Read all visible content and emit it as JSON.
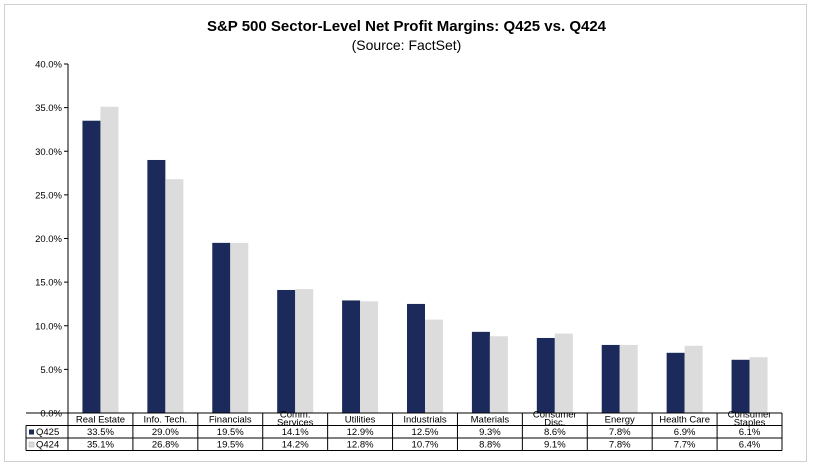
{
  "chart_data": {
    "type": "bar",
    "title": "S&P 500 Sector-Level Net Profit Margins: Q425 vs. Q424",
    "subtitle": "(Source: FactSet)",
    "ylim": [
      0,
      40
    ],
    "yticks": [
      "0.0%",
      "5.0%",
      "10.0%",
      "15.0%",
      "20.0%",
      "25.0%",
      "30.0%",
      "35.0%",
      "40.0%"
    ],
    "grid": false,
    "legend": "data-table-left",
    "categories": [
      [
        "Real Estate"
      ],
      [
        "Info. Tech."
      ],
      [
        "Financials"
      ],
      [
        "Comm.",
        "Services"
      ],
      [
        "Utilities"
      ],
      [
        "Industrials"
      ],
      [
        "Materials"
      ],
      [
        "Consumer",
        "Disc."
      ],
      [
        "Energy"
      ],
      [
        "Health Care"
      ],
      [
        "Consumer",
        "Staples"
      ]
    ],
    "series": [
      {
        "name": "Q425",
        "color": "#1b2a5a",
        "values": [
          33.5,
          29.0,
          19.5,
          14.1,
          12.9,
          12.5,
          9.3,
          8.6,
          7.8,
          6.9,
          6.1
        ],
        "labels": [
          "33.5%",
          "29.0%",
          "19.5%",
          "14.1%",
          "12.9%",
          "12.5%",
          "9.3%",
          "8.6%",
          "7.8%",
          "6.9%",
          "6.1%"
        ]
      },
      {
        "name": "Q424",
        "color": "#dcdcdc",
        "values": [
          35.1,
          26.8,
          19.5,
          14.2,
          12.8,
          10.7,
          8.8,
          9.1,
          7.8,
          7.7,
          6.4
        ],
        "labels": [
          "35.1%",
          "26.8%",
          "19.5%",
          "14.2%",
          "12.8%",
          "10.7%",
          "8.8%",
          "9.1%",
          "7.8%",
          "7.7%",
          "6.4%"
        ]
      }
    ]
  }
}
